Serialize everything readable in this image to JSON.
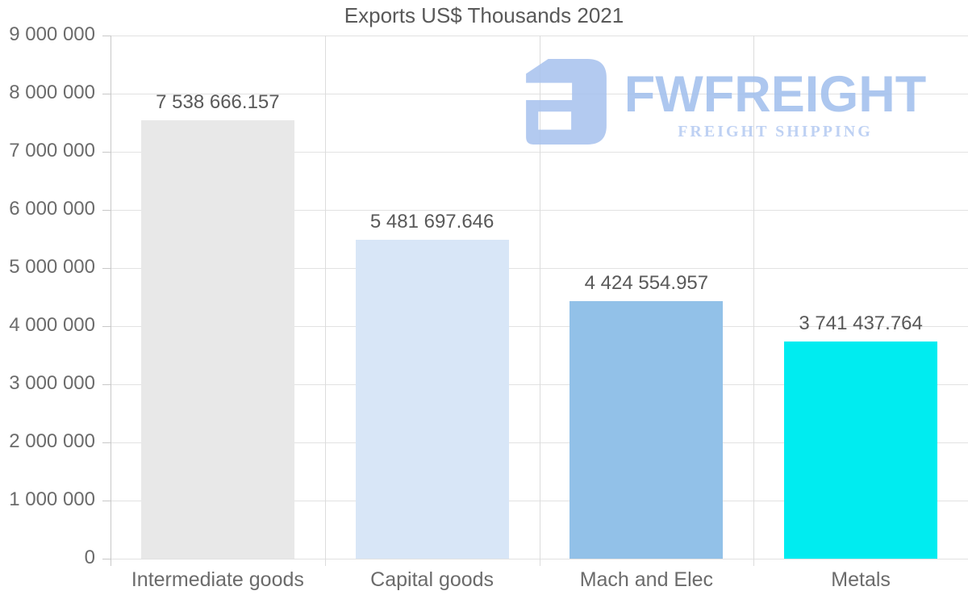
{
  "title": "Exports US$ Thousands 2021",
  "logo": {
    "name": "FWFREIGHT",
    "tagline": "FREIGHT SHIPPING",
    "mark_color": "#a9c3ee",
    "name_color": "#a2c0ed",
    "tagline_color": "#b6cbf2"
  },
  "chart_data": {
    "type": "bar",
    "title": "Exports US$ Thousands 2021",
    "categories": [
      "Intermediate goods",
      "Capital goods",
      "Mach and Elec",
      "Metals"
    ],
    "values": [
      7538666.157,
      5481697.646,
      4424554.957,
      3741437.764
    ],
    "value_labels": [
      "7 538 666.157",
      "5 481 697.646",
      "4 424 554.957",
      "3 741 437.764"
    ],
    "bar_colors": [
      "#e8e8e8",
      "#d8e6f7",
      "#92c1e8",
      "#00ecf0"
    ],
    "xlabel": "",
    "ylabel": "",
    "ylim": [
      0,
      9000000
    ],
    "ytick_interval": 1000000,
    "ytick_labels": [
      "0",
      "1 000 000",
      "2 000 000",
      "3 000 000",
      "4 000 000",
      "5 000 000",
      "6 000 000",
      "7 000 000",
      "8 000 000",
      "9 000 000"
    ],
    "grid": true,
    "legend": false
  }
}
